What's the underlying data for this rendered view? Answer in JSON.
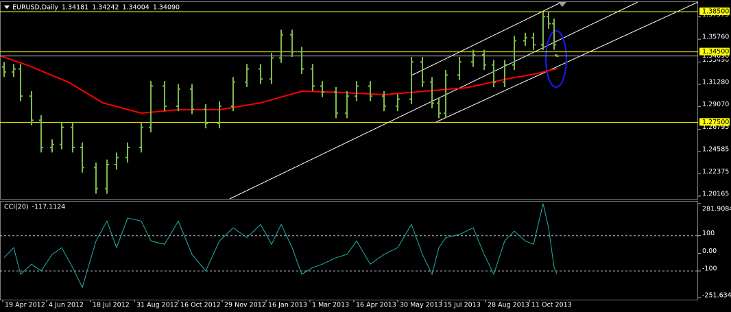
{
  "chart_data": [
    {
      "type": "ohlc",
      "title": "EURUSD,Daily",
      "xlim": [
        0,
        508
      ],
      "x": [
        2,
        9,
        14,
        22,
        29,
        37,
        44,
        52,
        59,
        69,
        77,
        84,
        92,
        102,
        109,
        119,
        129,
        139,
        149,
        159,
        169,
        179,
        189,
        197,
        204,
        212,
        219,
        227,
        234,
        244,
        252,
        259,
        269,
        279,
        289,
        299,
        307,
        314,
        319,
        324,
        334,
        344,
        352,
        359,
        367,
        374,
        382,
        388,
        395,
        399,
        403,
        405
      ],
      "open": [
        1.33,
        1.325,
        1.328,
        1.301,
        1.277,
        1.25,
        1.253,
        1.27,
        1.25,
        1.23,
        1.209,
        1.233,
        1.24,
        1.25,
        1.27,
        1.311,
        1.291,
        1.308,
        1.288,
        1.274,
        1.291,
        1.315,
        1.328,
        1.318,
        1.339,
        1.362,
        1.345,
        1.328,
        1.311,
        1.305,
        1.284,
        1.301,
        1.311,
        1.301,
        1.291,
        1.298,
        1.335,
        1.315,
        1.294,
        1.284,
        1.322,
        1.335,
        1.342,
        1.332,
        1.315,
        1.332,
        1.356,
        1.359,
        1.352,
        1.38,
        1.373,
        1.34181
      ],
      "high": [
        1.335,
        1.333,
        1.333,
        1.306,
        1.282,
        1.258,
        1.275,
        1.275,
        1.255,
        1.235,
        1.238,
        1.245,
        1.255,
        1.275,
        1.316,
        1.316,
        1.313,
        1.313,
        1.293,
        1.296,
        1.32,
        1.333,
        1.333,
        1.344,
        1.367,
        1.367,
        1.35,
        1.333,
        1.316,
        1.31,
        1.306,
        1.316,
        1.316,
        1.306,
        1.303,
        1.34,
        1.34,
        1.32,
        1.299,
        1.327,
        1.34,
        1.347,
        1.347,
        1.337,
        1.337,
        1.361,
        1.364,
        1.364,
        1.385,
        1.385,
        1.378,
        1.34242
      ],
      "low": [
        1.32,
        1.32,
        1.296,
        1.272,
        1.245,
        1.245,
        1.248,
        1.245,
        1.225,
        1.204,
        1.204,
        1.228,
        1.235,
        1.245,
        1.265,
        1.286,
        1.286,
        1.283,
        1.269,
        1.269,
        1.286,
        1.31,
        1.313,
        1.313,
        1.334,
        1.34,
        1.323,
        1.306,
        1.3,
        1.279,
        1.279,
        1.296,
        1.296,
        1.286,
        1.286,
        1.293,
        1.31,
        1.289,
        1.279,
        1.279,
        1.317,
        1.33,
        1.327,
        1.31,
        1.31,
        1.327,
        1.351,
        1.347,
        1.347,
        1.368,
        1.347,
        1.34004
      ],
      "close": [
        1.325,
        1.328,
        1.301,
        1.277,
        1.25,
        1.253,
        1.27,
        1.25,
        1.23,
        1.209,
        1.233,
        1.24,
        1.25,
        1.27,
        1.311,
        1.291,
        1.308,
        1.288,
        1.274,
        1.291,
        1.315,
        1.328,
        1.318,
        1.339,
        1.362,
        1.345,
        1.328,
        1.311,
        1.305,
        1.284,
        1.301,
        1.311,
        1.301,
        1.291,
        1.298,
        1.335,
        1.315,
        1.294,
        1.284,
        1.322,
        1.335,
        1.342,
        1.332,
        1.315,
        1.332,
        1.356,
        1.359,
        1.352,
        1.38,
        1.373,
        1.352,
        1.3409
      ],
      "color": "#7cba4a",
      "ylim": [
        1.1989,
        1.3945
      ],
      "yticks": [
        1.37975,
        {
          "value": 1.3576,
          "label": "1.35760"
        },
        {
          "value": 1.3349,
          "label": "1.33490"
        },
        {
          "value": 1.3128,
          "label": "1.31280"
        },
        {
          "value": 1.2907,
          "label": "1.29070"
        },
        1.26795,
        1.24585,
        1.22375,
        1.20165
      ],
      "current_price": {
        "value": 1.3409,
        "label": "1.34090"
      },
      "levels": [
        {
          "value": 1.385,
          "label": "1.38500"
        },
        {
          "value": 1.345,
          "label": "1.34500"
        },
        {
          "value": 1.275,
          "label": "1.27500"
        }
      ],
      "level_color": "#ffff00",
      "overlays": [
        {
          "type": "line",
          "color": "#ff0000",
          "x": [
            0,
            19,
            49,
            74,
            102,
            129,
            159,
            189,
            219,
            249,
            279,
            309,
            339,
            369,
            389,
            405
          ],
          "values": [
            1.3407,
            1.3318,
            1.3148,
            1.2943,
            1.2841,
            1.2875,
            1.2875,
            1.2943,
            1.3059,
            1.3046,
            1.3025,
            1.3059,
            1.3093,
            1.3182,
            1.323,
            1.3284
          ]
        }
      ]
    },
    {
      "type": "line",
      "title": "CCI(20)",
      "xlim": [
        0,
        508
      ],
      "x": [
        2,
        9,
        14,
        22,
        29,
        37,
        44,
        52,
        59,
        69,
        77,
        84,
        92,
        102,
        109,
        119,
        129,
        139,
        149,
        159,
        169,
        179,
        189,
        197,
        204,
        212,
        219,
        227,
        234,
        244,
        252,
        259,
        269,
        279,
        289,
        299,
        307,
        314,
        319,
        324,
        334,
        344,
        352,
        359,
        367,
        374,
        382,
        388,
        395,
        399,
        403,
        405
      ],
      "values": [
        -25,
        32,
        -119,
        -62,
        -100,
        -6,
        32,
        -81,
        -194,
        70,
        183,
        32,
        200,
        183,
        70,
        51,
        183,
        -6,
        -100,
        70,
        145,
        89,
        164,
        51,
        164,
        32,
        -119,
        -81,
        -62,
        -25,
        -6,
        70,
        -62,
        -6,
        32,
        164,
        -6,
        -119,
        32,
        89,
        107,
        145,
        -6,
        -119,
        70,
        126,
        70,
        51,
        281.9084,
        145,
        -81,
        -117.1124
      ],
      "color": "#20b2aa",
      "ylim": [
        -251.6349,
        281.9084
      ],
      "yticks": [
        281.9084,
        100,
        {
          "value": 0,
          "label": "0.00"
        },
        -100,
        -251.6349
      ],
      "levels": [
        100,
        -100
      ],
      "xticks": [
        {
          "value": 1,
          "label": "19 Apr 2012"
        },
        {
          "value": 33,
          "label": "4 Jun 2012"
        },
        {
          "value": 65,
          "label": "18 Jul 2012"
        },
        {
          "value": 97,
          "label": "31 Aug 2012"
        },
        {
          "value": 129,
          "label": "16 Oct 2012"
        },
        {
          "value": 161,
          "label": "29 Nov 2012"
        },
        {
          "value": 193,
          "label": "16 Jan 2013"
        },
        {
          "value": 225,
          "label": "1 Mar 2013"
        },
        {
          "value": 257,
          "label": "16 Apr 2013"
        },
        {
          "value": 289,
          "label": "30 May 2013"
        },
        {
          "value": 321,
          "label": "15 Jul 2013"
        },
        {
          "value": 353,
          "label": "28 Aug 2013"
        },
        {
          "value": 385,
          "label": "11 Oct 2013"
        }
      ]
    }
  ]
}
